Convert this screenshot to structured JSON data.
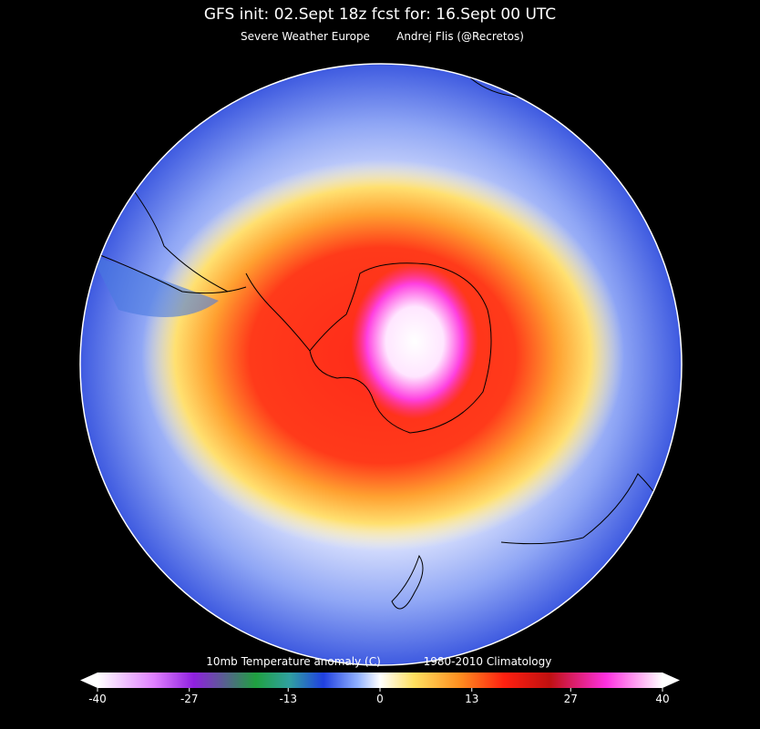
{
  "header": {
    "title": "GFS init: 02.Sept 18z  fcst for: 16.Sept  00 UTC",
    "source": "Severe Weather Europe",
    "author": "Andrej Flis (@Recretos)"
  },
  "colorbar": {
    "label": "10mb Temperature anomaly (C)",
    "climatology": "1980-2010 Climatology",
    "range": [
      -40,
      40
    ],
    "ticks": [
      -40,
      -27,
      -13,
      0,
      13,
      27,
      40
    ]
  }
}
